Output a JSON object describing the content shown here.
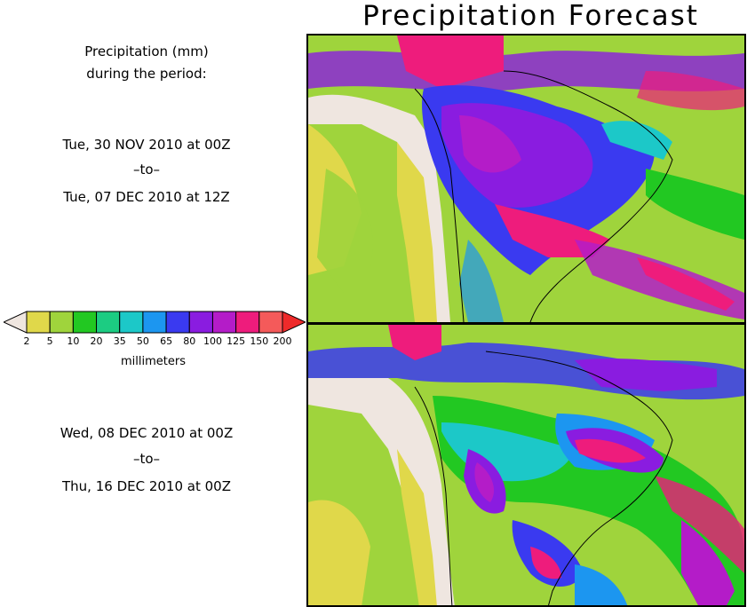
{
  "title": "Precipitation Forecast",
  "header": {
    "line1": "Precipitation (mm)",
    "line2": "during the period:"
  },
  "period1": {
    "start": "Tue, 30 NOV 2010 at 00Z",
    "sep": "–to–",
    "end": "Tue, 07 DEC 2010 at 12Z"
  },
  "period2": {
    "start": "Wed, 08 DEC 2010 at 00Z",
    "sep": "–to–",
    "end": "Thu, 16 DEC 2010 at 00Z"
  },
  "colorbar": {
    "units": "millimeters",
    "ticks": [
      "2",
      "5",
      "10",
      "20",
      "35",
      "50",
      "65",
      "80",
      "100",
      "125",
      "150",
      "200"
    ],
    "low_color": "#efe6e0",
    "colors": [
      "#e0d84a",
      "#9fd43c",
      "#22c822",
      "#1ccc82",
      "#1cc8c8",
      "#1c96f0",
      "#3a3af0",
      "#8a1ce0",
      "#b41cc8",
      "#ee1c7c",
      "#f45a5a"
    ],
    "high_color": "#ee2a2a"
  }
}
